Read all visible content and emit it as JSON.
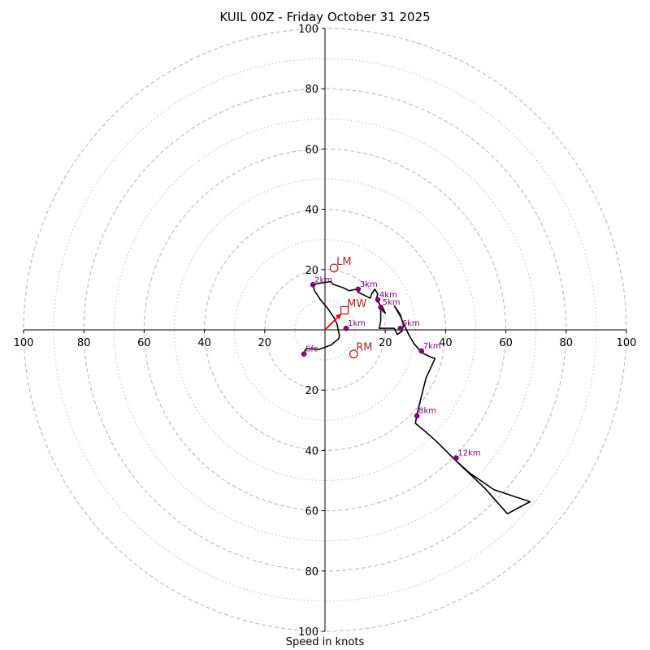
{
  "chart_data": {
    "type": "hodograph",
    "title": "KUIL 00Z - Friday October 31 2025",
    "xlabel": "Speed in knots",
    "units": "kt",
    "range": [
      -100,
      100
    ],
    "major_rings": [
      20,
      40,
      60,
      80,
      100
    ],
    "minor_rings": [
      10,
      30,
      50,
      70,
      90
    ],
    "tick_labels": {
      "x": [
        "100",
        "80",
        "60",
        "40",
        "20",
        "20",
        "40",
        "60",
        "80",
        "100"
      ],
      "y": [
        "100",
        "80",
        "60",
        "40",
        "20",
        "20",
        "40",
        "60",
        "80",
        "100"
      ]
    },
    "tick_values": {
      "x": [
        -100,
        -80,
        -60,
        -40,
        -20,
        20,
        40,
        60,
        80,
        100
      ],
      "y": [
        100,
        80,
        60,
        40,
        20,
        -20,
        -40,
        -60,
        -80,
        -100
      ]
    },
    "trace": [
      [
        -7.0,
        -8.0
      ],
      [
        -6.5,
        -6.5
      ],
      [
        -5.5,
        -6.2
      ],
      [
        -2,
        -6.5
      ],
      [
        2,
        -5
      ],
      [
        4.5,
        -3
      ],
      [
        4.8,
        -2
      ],
      [
        4,
        2
      ],
      [
        3,
        4
      ],
      [
        1,
        7
      ],
      [
        -1.5,
        10
      ],
      [
        -2.5,
        11.5
      ],
      [
        -3.5,
        13
      ],
      [
        -4,
        15
      ],
      [
        -1.5,
        15.5
      ],
      [
        2,
        16
      ],
      [
        2.5,
        15.2
      ],
      [
        6,
        14
      ],
      [
        8,
        13
      ],
      [
        10.5,
        13.5
      ],
      [
        11,
        12.5
      ],
      [
        13,
        11.5
      ],
      [
        15,
        10.5
      ],
      [
        15.5,
        12
      ],
      [
        16.5,
        13.5
      ],
      [
        17.5,
        12
      ],
      [
        17,
        10
      ],
      [
        18.5,
        8
      ],
      [
        18.7,
        7.5
      ],
      [
        19,
        7.8
      ],
      [
        20,
        5.5
      ],
      [
        18.5,
        7.2
      ],
      [
        18.5,
        3
      ],
      [
        18,
        0.5
      ],
      [
        20.5,
        0.5
      ],
      [
        23,
        0.5
      ],
      [
        24,
        -1.5
      ],
      [
        25.5,
        -0.5
      ],
      [
        26,
        1.5
      ],
      [
        25,
        5
      ],
      [
        23,
        8
      ],
      [
        25,
        4.5
      ],
      [
        27,
        0
      ],
      [
        28,
        -2
      ],
      [
        29.5,
        -4.5
      ],
      [
        32,
        -7.5
      ],
      [
        35,
        -9
      ],
      [
        36.5,
        -9.5
      ],
      [
        34,
        -15
      ],
      [
        33.5,
        -16
      ],
      [
        32.5,
        -20
      ],
      [
        31.5,
        -24
      ],
      [
        30.5,
        -28
      ],
      [
        30,
        -31
      ],
      [
        33,
        -33.5
      ],
      [
        37,
        -37
      ],
      [
        43,
        -43
      ],
      [
        48,
        -47.5
      ],
      [
        56,
        -53
      ],
      [
        68,
        -57
      ],
      [
        60.5,
        -61
      ],
      [
        53,
        -52.5
      ],
      [
        43,
        -43
      ]
    ],
    "height_markers": [
      {
        "label": "Sfc",
        "u": -7.0,
        "v": -8.0
      },
      {
        "label": "1km",
        "u": 7.0,
        "v": 0.5
      },
      {
        "label": "2km",
        "u": -4.0,
        "v": 15.0
      },
      {
        "label": "3km",
        "u": 11.0,
        "v": 13.5
      },
      {
        "label": "4km",
        "u": 17.5,
        "v": 10.0
      },
      {
        "label": "5km",
        "u": 18.5,
        "v": 7.5
      },
      {
        "label": "6km",
        "u": 25.0,
        "v": 0.5
      },
      {
        "label": "7km",
        "u": 32.0,
        "v": -7.0
      },
      {
        "label": "8km",
        "u": 30.5,
        "v": -28.5
      },
      {
        "label": "12km",
        "u": 43.5,
        "v": -42.5
      }
    ],
    "storm_motion": [
      {
        "label": "LM",
        "u": 3.0,
        "v": 20.5,
        "marker": "circle"
      },
      {
        "label": "MW",
        "u": 6.5,
        "v": 6.5,
        "marker": "square"
      },
      {
        "label": "RM",
        "u": 9.5,
        "v": -8.0,
        "marker": "circle"
      }
    ],
    "mean_wind_vector": {
      "u": 5.5,
      "v": 5.5
    },
    "colors": {
      "trace": "#000000",
      "height_markers": "#800080",
      "storm_motion": "#b22222",
      "mean_wind_vector": "#ff0000",
      "grid": "#bfbfbf"
    }
  }
}
